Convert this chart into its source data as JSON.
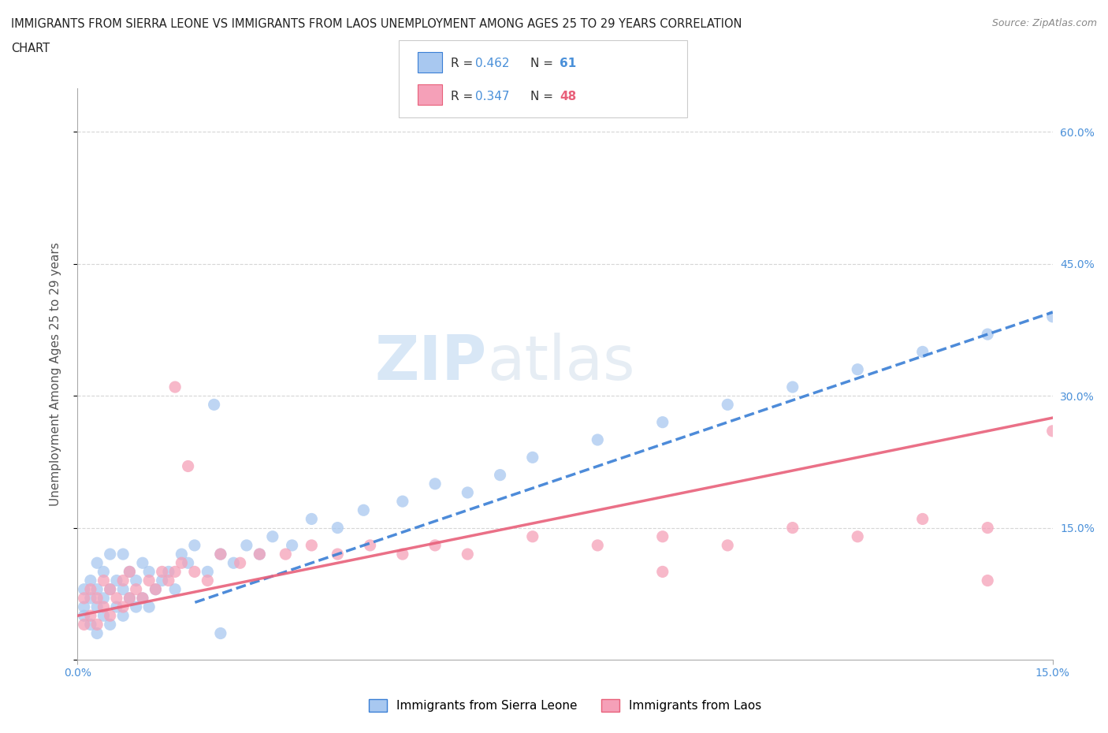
{
  "title_line1": "IMMIGRANTS FROM SIERRA LEONE VS IMMIGRANTS FROM LAOS UNEMPLOYMENT AMONG AGES 25 TO 29 YEARS CORRELATION",
  "title_line2": "CHART",
  "source_text": "Source: ZipAtlas.com",
  "ylabel": "Unemployment Among Ages 25 to 29 years",
  "xlim": [
    0.0,
    0.15
  ],
  "ylim": [
    0.0,
    0.65
  ],
  "ytick_vals": [
    0.0,
    0.15,
    0.3,
    0.45,
    0.6
  ],
  "ytick_labels": [
    "",
    "15.0%",
    "30.0%",
    "45.0%",
    "60.0%"
  ],
  "xtick_vals": [
    0.0,
    0.15
  ],
  "xtick_labels": [
    "0.0%",
    "15.0%"
  ],
  "watermark_zip": "ZIP",
  "watermark_atlas": "atlas",
  "sierra_leone_color": "#a8c8f0",
  "laos_color": "#f5a0b8",
  "sierra_leone_line_color": "#3a7fd5",
  "laos_line_color": "#e8607a",
  "sierra_leone_label": "Immigrants from Sierra Leone",
  "laos_label": "Immigrants from Laos",
  "legend_r1": "R = 0.462",
  "legend_n1": "61",
  "legend_r2": "R = 0.347",
  "legend_n2": "48",
  "background_color": "#ffffff",
  "grid_color": "#cccccc",
  "text_color_blue": "#4a90d9",
  "text_color_pink": "#e8607a",
  "sl_trend_intercept": 0.02,
  "sl_trend_slope": 2.5,
  "la_trend_intercept": 0.05,
  "la_trend_slope": 1.5,
  "sl_x": [
    0.001,
    0.001,
    0.001,
    0.002,
    0.002,
    0.002,
    0.003,
    0.003,
    0.003,
    0.003,
    0.004,
    0.004,
    0.004,
    0.005,
    0.005,
    0.005,
    0.006,
    0.006,
    0.007,
    0.007,
    0.007,
    0.008,
    0.008,
    0.009,
    0.009,
    0.01,
    0.01,
    0.011,
    0.011,
    0.012,
    0.013,
    0.014,
    0.015,
    0.016,
    0.017,
    0.018,
    0.02,
    0.021,
    0.022,
    0.024,
    0.026,
    0.028,
    0.03,
    0.033,
    0.036,
    0.04,
    0.044,
    0.05,
    0.055,
    0.06,
    0.065,
    0.07,
    0.08,
    0.09,
    0.1,
    0.11,
    0.12,
    0.13,
    0.14,
    0.15,
    0.022
  ],
  "sl_y": [
    0.05,
    0.06,
    0.08,
    0.04,
    0.07,
    0.09,
    0.03,
    0.06,
    0.08,
    0.11,
    0.05,
    0.07,
    0.1,
    0.04,
    0.08,
    0.12,
    0.06,
    0.09,
    0.05,
    0.08,
    0.12,
    0.07,
    0.1,
    0.06,
    0.09,
    0.07,
    0.11,
    0.06,
    0.1,
    0.08,
    0.09,
    0.1,
    0.08,
    0.12,
    0.11,
    0.13,
    0.1,
    0.29,
    0.12,
    0.11,
    0.13,
    0.12,
    0.14,
    0.13,
    0.16,
    0.15,
    0.17,
    0.18,
    0.2,
    0.19,
    0.21,
    0.23,
    0.25,
    0.27,
    0.29,
    0.31,
    0.33,
    0.35,
    0.37,
    0.39,
    0.03
  ],
  "la_x": [
    0.001,
    0.001,
    0.002,
    0.002,
    0.003,
    0.003,
    0.004,
    0.004,
    0.005,
    0.005,
    0.006,
    0.007,
    0.007,
    0.008,
    0.008,
    0.009,
    0.01,
    0.011,
    0.012,
    0.013,
    0.014,
    0.015,
    0.016,
    0.017,
    0.018,
    0.02,
    0.022,
    0.025,
    0.028,
    0.032,
    0.036,
    0.04,
    0.045,
    0.05,
    0.055,
    0.06,
    0.07,
    0.08,
    0.09,
    0.1,
    0.11,
    0.12,
    0.13,
    0.14,
    0.15,
    0.015,
    0.14,
    0.09
  ],
  "la_y": [
    0.04,
    0.07,
    0.05,
    0.08,
    0.04,
    0.07,
    0.06,
    0.09,
    0.05,
    0.08,
    0.07,
    0.06,
    0.09,
    0.07,
    0.1,
    0.08,
    0.07,
    0.09,
    0.08,
    0.1,
    0.09,
    0.31,
    0.11,
    0.22,
    0.1,
    0.09,
    0.12,
    0.11,
    0.12,
    0.12,
    0.13,
    0.12,
    0.13,
    0.12,
    0.13,
    0.12,
    0.14,
    0.13,
    0.14,
    0.13,
    0.15,
    0.14,
    0.16,
    0.15,
    0.26,
    0.1,
    0.09,
    0.1
  ]
}
